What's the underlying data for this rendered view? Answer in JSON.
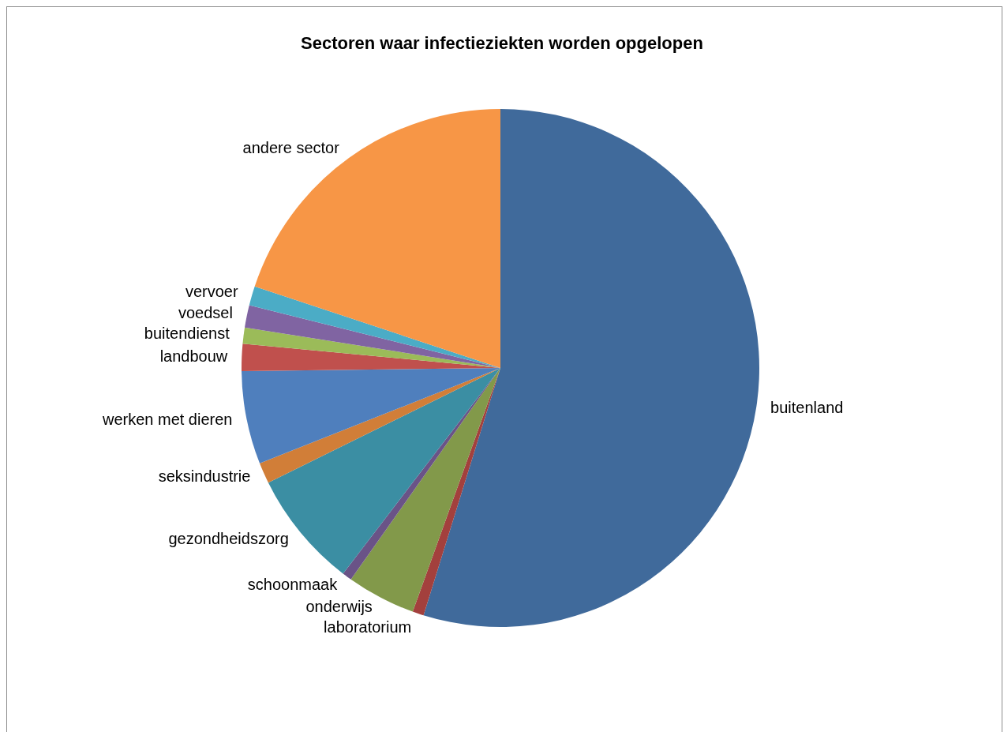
{
  "chart_data": {
    "type": "pie",
    "title": "Sectoren waar infectieziekten worden opgelopen",
    "categories": [
      "buitenland",
      "laboratorium",
      "onderwijs",
      "schoonmaak",
      "gezondheidszorg",
      "seksindustrie",
      "werken met dieren",
      "landbouw",
      "buitendienst",
      "voedsel",
      "vervoer",
      "andere sector"
    ],
    "values": [
      54.8,
      0.7,
      4.3,
      0.6,
      7.3,
      1.3,
      5.8,
      1.7,
      1.0,
      1.4,
      1.2,
      19.9
    ],
    "colors": [
      "#406a9b",
      "#a3403d",
      "#82994a",
      "#6a5387",
      "#3b8ea3",
      "#d17e38",
      "#4f7fbd",
      "#c0504d",
      "#9bbb59",
      "#8064a2",
      "#4bacc6",
      "#f79646"
    ],
    "legend": false
  }
}
